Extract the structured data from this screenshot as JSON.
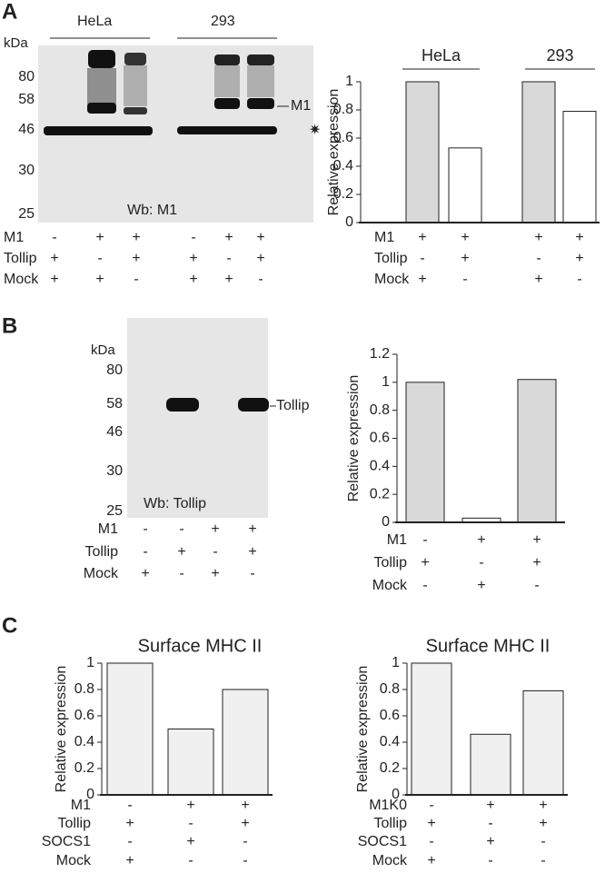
{
  "panels": [
    "A",
    "B",
    "C"
  ],
  "blots": [
    {
      "kda_label": "kDa",
      "markers": [
        "80",
        "58",
        "46",
        "30",
        "25"
      ],
      "groups": [
        "HeLa",
        "293"
      ],
      "band_label": "M1",
      "star_label": "✷",
      "wb": "Wb: M1",
      "conditions": [
        {
          "name": "M1",
          "marks": [
            "-",
            "+",
            "+",
            "-",
            "+",
            "+"
          ]
        },
        {
          "name": "Tollip",
          "marks": [
            "+",
            "-",
            "+",
            "+",
            "-",
            "+"
          ]
        },
        {
          "name": "Mock",
          "marks": [
            "+",
            "+",
            "-",
            "+",
            "+",
            "-"
          ]
        }
      ]
    },
    {
      "kda_label": "kDa",
      "markers": [
        "80",
        "58",
        "46",
        "30",
        "25"
      ],
      "band_label": "Tollip",
      "wb": "Wb: Tollip",
      "conditions": [
        {
          "name": "M1",
          "marks": [
            "-",
            "-",
            "+",
            "+"
          ]
        },
        {
          "name": "Tollip",
          "marks": [
            "-",
            "+",
            "-",
            "+"
          ]
        },
        {
          "name": "Mock",
          "marks": [
            "+",
            "-",
            "+",
            "-"
          ]
        }
      ]
    }
  ],
  "chart_data": [
    {
      "type": "bar",
      "ylabel": "Relative expression",
      "groups": [
        "HeLa",
        "293"
      ],
      "categories": [
        null,
        null,
        null,
        null
      ],
      "values": [
        1,
        0.53,
        1,
        0.79
      ],
      "colors": [
        "#d9d9d9",
        "#ffffff",
        "#d9d9d9",
        "#ffffff"
      ],
      "ylim": [
        0,
        1
      ],
      "yticks": [
        0,
        0.2,
        0.4,
        0.6,
        0.8,
        1
      ],
      "conditions": [
        {
          "name": "M1",
          "marks": [
            "+",
            "+",
            "+",
            "+"
          ]
        },
        {
          "name": "Tollip",
          "marks": [
            "-",
            "+",
            "-",
            "+"
          ]
        },
        {
          "name": "Mock",
          "marks": [
            "+",
            "-",
            "+",
            "-"
          ]
        }
      ]
    },
    {
      "type": "bar",
      "ylabel": "Relative expression",
      "categories": [
        null,
        null,
        null
      ],
      "values": [
        1,
        0.03,
        1.02
      ],
      "colors": [
        "#d9d9d9",
        "#ffffff",
        "#d9d9d9"
      ],
      "ylim": [
        0,
        1.2
      ],
      "yticks": [
        0,
        0.2,
        0.4,
        0.6,
        0.8,
        1,
        1.2
      ],
      "conditions": [
        {
          "name": "M1",
          "marks": [
            "-",
            "+",
            "+"
          ]
        },
        {
          "name": "Tollip",
          "marks": [
            "+",
            "-",
            "+"
          ]
        },
        {
          "name": "Mock",
          "marks": [
            "-",
            "+",
            "-"
          ]
        }
      ]
    },
    {
      "type": "bar",
      "title": "Surface MHC II",
      "ylabel": "Relative expression",
      "categories": [
        null,
        null,
        null
      ],
      "values": [
        1,
        0.5,
        0.8
      ],
      "colors": [
        "#f0f0f0",
        "#f0f0f0",
        "#f0f0f0"
      ],
      "ylim": [
        0,
        1
      ],
      "yticks": [
        0,
        0.2,
        0.4,
        0.6,
        0.8,
        1
      ],
      "conditions": [
        {
          "name": "M1",
          "marks": [
            "-",
            "+",
            "+"
          ]
        },
        {
          "name": "Tollip",
          "marks": [
            "+",
            "-",
            "+"
          ]
        },
        {
          "name": "SOCS1",
          "marks": [
            "-",
            "+",
            "-"
          ]
        },
        {
          "name": "Mock",
          "marks": [
            "+",
            "-",
            "-"
          ]
        }
      ]
    },
    {
      "type": "bar",
      "title": "Surface MHC II",
      "ylabel": "Relative expression",
      "categories": [
        null,
        null,
        null
      ],
      "values": [
        1,
        0.46,
        0.79
      ],
      "colors": [
        "#f0f0f0",
        "#f0f0f0",
        "#f0f0f0"
      ],
      "ylim": [
        0,
        1
      ],
      "yticks": [
        0,
        0.2,
        0.4,
        0.6,
        0.8,
        1
      ],
      "conditions": [
        {
          "name": "M1K0",
          "marks": [
            "-",
            "+",
            "+"
          ]
        },
        {
          "name": "Tollip",
          "marks": [
            "+",
            "-",
            "+"
          ]
        },
        {
          "name": "SOCS1",
          "marks": [
            "-",
            "+",
            "-"
          ]
        },
        {
          "name": "Mock",
          "marks": [
            "+",
            "-",
            "-"
          ]
        }
      ]
    }
  ]
}
